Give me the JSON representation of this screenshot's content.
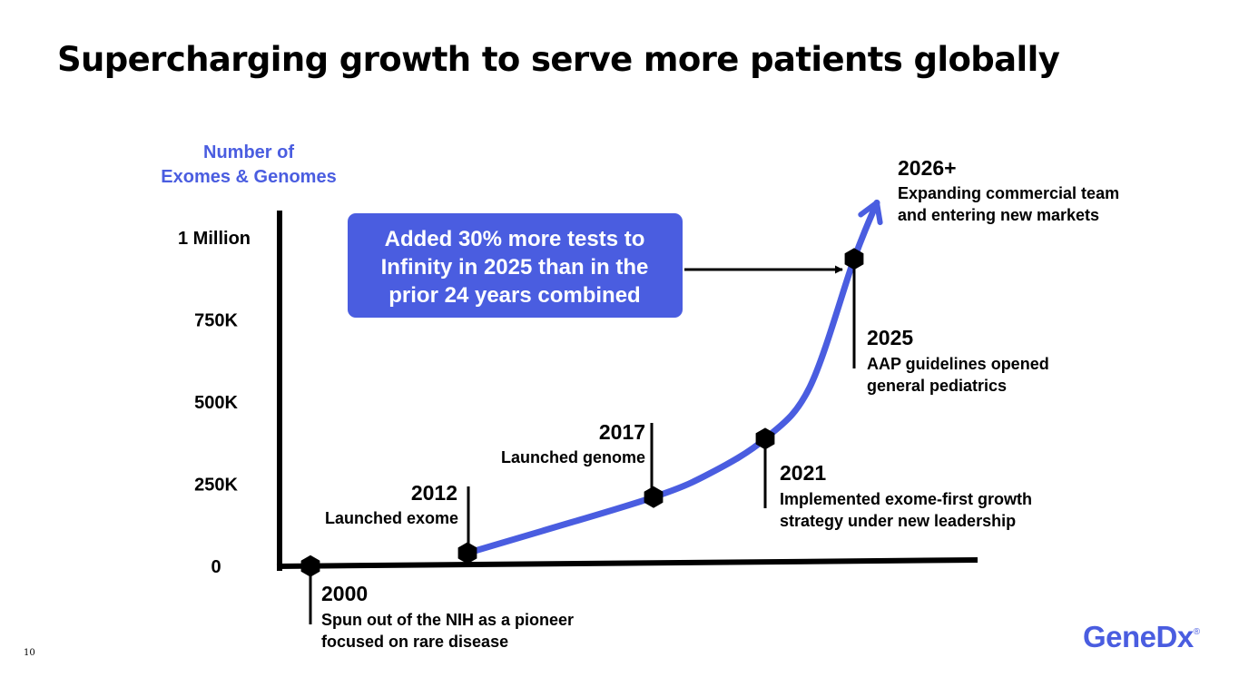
{
  "slide": {
    "title": "Supercharging growth to serve more patients globally",
    "page_number": "10",
    "logo_text": "GeneDx",
    "logo_mark": "®"
  },
  "colors": {
    "accent": "#4a5de0",
    "text": "#000000",
    "background": "#ffffff",
    "callout_text": "#ffffff"
  },
  "chart_data": {
    "type": "line",
    "ylabel_lines": [
      "Number of",
      "Exomes & Genomes"
    ],
    "y_ticks": [
      {
        "value": 0,
        "label": "0"
      },
      {
        "value": 250000,
        "label": "250K"
      },
      {
        "value": 500000,
        "label": "500K"
      },
      {
        "value": 750000,
        "label": "750K"
      },
      {
        "value": 1000000,
        "label": "1 Million"
      }
    ],
    "ylim": [
      0,
      1000000
    ],
    "xlim": [
      2000,
      2026
    ],
    "grid": false,
    "x_axis_labels": false,
    "series": [
      {
        "points": [
          {
            "x": 2012,
            "y": 35000
          },
          {
            "x": 2014,
            "y": 100000
          },
          {
            "x": 2017,
            "y": 200000
          },
          {
            "x": 2019,
            "y": 270000
          },
          {
            "x": 2021,
            "y": 375000
          },
          {
            "x": 2023,
            "y": 530000
          },
          {
            "x": 2025,
            "y": 920000
          },
          {
            "x": 2026,
            "y": 1090000
          }
        ],
        "arrow_end": true
      }
    ],
    "milestones": [
      {
        "x": 2000,
        "y": 0,
        "year": "2000",
        "desc": [
          "Spun out of the NIH as a pioneer",
          "focused on rare disease"
        ]
      },
      {
        "x": 2012,
        "y": 35000,
        "year": "2012",
        "desc": [
          "Launched exome"
        ]
      },
      {
        "x": 2017,
        "y": 200000,
        "year": "2017",
        "desc": [
          "Launched genome"
        ]
      },
      {
        "x": 2021,
        "y": 375000,
        "year": "2021",
        "desc": [
          "Implemented exome-first growth",
          "strategy under new leadership"
        ]
      },
      {
        "x": 2025,
        "y": 920000,
        "year": "2025",
        "desc": [
          "AAP guidelines opened",
          "general pediatrics"
        ]
      }
    ],
    "endpoint_annotation": {
      "year": "2026+",
      "desc": [
        "Expanding commercial team",
        "and entering new markets"
      ]
    },
    "callout": {
      "lines": [
        "Added 30% more tests to",
        "Infinity in 2025 than in the",
        "prior 24 years combined"
      ],
      "points_to": "2025"
    }
  }
}
